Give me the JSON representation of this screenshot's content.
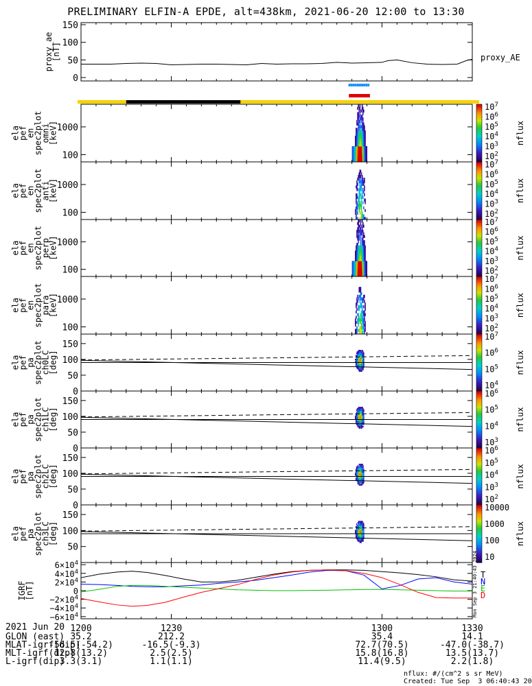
{
  "title": "PRELIMINARY ELFIN-A EPDE, alt=438km, 2021-06-20 12:00 to 13:30",
  "colors": {
    "yellow_bar": "#f5d200",
    "black_bar": "#000000",
    "blue_bar": "#1e90ff",
    "red_bar": "#e00000",
    "T": "#000000",
    "N": "#0000ff",
    "E": "#00c000",
    "D": "#ff0000"
  },
  "timebars": {
    "orbit": [
      {
        "from": 1200,
        "to": 1215,
        "color": "yellow"
      },
      {
        "from": 1215,
        "to": 1253,
        "color": "black"
      },
      {
        "from": 1253,
        "to": 1330,
        "color": "yellow"
      }
    ],
    "science_zone": {
      "from": 1289,
      "to": 1296,
      "color": "red"
    },
    "spin_marks": [
      1289.2,
      1289.9,
      1290.6,
      1291.3,
      1292,
      1292.7,
      1293.4,
      1294.1,
      1294.8,
      1295.5
    ]
  },
  "chart_data": [
    {
      "type": "line",
      "ylabel": "proxy_ae [nT]",
      "ylim": [
        0,
        150
      ],
      "yticks": [
        "0",
        "50",
        "100",
        "150"
      ],
      "series": [
        {
          "name": "proxy_AE",
          "x": [
            1200,
            1205,
            1210,
            1215,
            1220,
            1225,
            1230,
            1235,
            1240,
            1245,
            1250,
            1255,
            1260,
            1265,
            1270,
            1275,
            1280,
            1285,
            1290,
            1295,
            1300,
            1302,
            1305,
            1310,
            1315,
            1320,
            1325,
            1328,
            1330
          ],
          "values": [
            38,
            38,
            38,
            40,
            41,
            40,
            36,
            37,
            38,
            38,
            37,
            36,
            40,
            38,
            39,
            39,
            40,
            43,
            41,
            42,
            43,
            48,
            50,
            42,
            38,
            37,
            38,
            48,
            52
          ]
        }
      ]
    },
    {
      "type": "heatmap",
      "ylabel": "ela pef en spec2plot omni [keV]",
      "ylog": true,
      "ylim": [
        55,
        6500
      ],
      "yticks": [
        "100",
        "1000"
      ],
      "colorbar": {
        "label": "nflux",
        "ticks": [
          "10^2",
          "10^3",
          "10^4",
          "10^5",
          "10^6",
          "10^7"
        ]
      },
      "x_range": [
        1290,
        1296
      ]
    },
    {
      "type": "heatmap",
      "ylabel": "ela pef en spec2plot anti [keV]",
      "ylog": true,
      "ylim": [
        55,
        6500
      ],
      "yticks": [
        "100",
        "1000"
      ],
      "colorbar": {
        "label": "nflux",
        "ticks": [
          "10^2",
          "10^3",
          "10^4",
          "10^5",
          "10^6",
          "10^7"
        ]
      },
      "x_range": [
        1290,
        1296
      ]
    },
    {
      "type": "heatmap",
      "ylabel": "ela pef en spec2plot perp [keV]",
      "ylog": true,
      "ylim": [
        55,
        6500
      ],
      "yticks": [
        "100",
        "1000"
      ],
      "colorbar": {
        "label": "nflux",
        "ticks": [
          "10^2",
          "10^3",
          "10^4",
          "10^5",
          "10^6",
          "10^7"
        ]
      },
      "x_range": [
        1290,
        1296
      ]
    },
    {
      "type": "heatmap",
      "ylabel": "ela pef en spec2plot para [keV]",
      "ylog": true,
      "ylim": [
        55,
        6500
      ],
      "yticks": [
        "100",
        "1000"
      ],
      "colorbar": {
        "label": "nflux",
        "ticks": [
          "10^2",
          "10^3",
          "10^4",
          "10^5",
          "10^6",
          "10^7"
        ]
      },
      "x_range": [
        1290,
        1296
      ]
    },
    {
      "type": "heatmap",
      "ylabel": "ela pef pa spec2plot ch0LC [deg]",
      "ylim": [
        0,
        180
      ],
      "yticks": [
        "0",
        "50",
        "100",
        "150"
      ],
      "colorbar": {
        "label": "nflux",
        "ticks": [
          "10^4",
          "10^5",
          "10^6",
          "10^7"
        ]
      },
      "loss_cone_solid": {
        "x": [
          1200,
          1330
        ],
        "values": [
          97,
          68
        ]
      },
      "anti_loss_cone_dashed": {
        "x": [
          1200,
          1330
        ],
        "values": [
          98,
          112
        ]
      },
      "ninety_line": 90
    },
    {
      "type": "heatmap",
      "ylabel": "ela pef pa spec2plot ch1LC [deg]",
      "ylim": [
        0,
        180
      ],
      "yticks": [
        "0",
        "50",
        "100",
        "150"
      ],
      "colorbar": {
        "label": "nflux",
        "ticks": [
          "10^3",
          "10^4",
          "10^5",
          "10^6"
        ]
      },
      "loss_cone_solid": {
        "x": [
          1200,
          1330
        ],
        "values": [
          97,
          68
        ]
      },
      "anti_loss_cone_dashed": {
        "x": [
          1200,
          1330
        ],
        "values": [
          98,
          112
        ]
      },
      "ninety_line": 90
    },
    {
      "type": "heatmap",
      "ylabel": "ela pef pa spec2plot ch2LC [deg]",
      "ylim": [
        0,
        180
      ],
      "yticks": [
        "0",
        "50",
        "100",
        "150"
      ],
      "colorbar": {
        "label": "nflux",
        "ticks": [
          "10^2",
          "10^3",
          "10^4",
          "10^5",
          "10^6"
        ]
      },
      "loss_cone_solid": {
        "x": [
          1200,
          1330
        ],
        "values": [
          97,
          68
        ]
      },
      "anti_loss_cone_dashed": {
        "x": [
          1200,
          1330
        ],
        "values": [
          98,
          112
        ]
      },
      "ninety_line": 90
    },
    {
      "type": "heatmap",
      "ylabel": "ela pef pa spec2plot ch3LC [deg]",
      "ylim": [
        0,
        180
      ],
      "yticks": [
        "50",
        "100",
        "150"
      ],
      "colorbar": {
        "label": "nflux",
        "ticks": [
          "10",
          "100",
          "1000",
          "10000"
        ]
      },
      "loss_cone_solid": {
        "x": [
          1200,
          1330
        ],
        "values": [
          97,
          68
        ]
      },
      "anti_loss_cone_dashed": {
        "x": [
          1200,
          1330
        ],
        "values": [
          98,
          112
        ]
      },
      "ninety_line": 90
    },
    {
      "type": "line",
      "ylabel": "IGRF [nT]",
      "ylim": [
        -65000,
        65000
      ],
      "yticks": [
        "6×10^4",
        "4×10^4",
        "2×10^4",
        "0",
        "−2×10^4",
        "−4×10^4",
        "−6×10^4"
      ],
      "side_note": "Mon Sep  3 21:40:43 2024",
      "series": [
        {
          "name": "T",
          "x": [
            1200,
            1206,
            1212,
            1217,
            1222,
            1228,
            1234,
            1240,
            1246,
            1252,
            1258,
            1264,
            1270,
            1276,
            1282,
            1288,
            1294,
            1300,
            1306,
            1312,
            1318,
            1324,
            1330
          ],
          "values": [
            30000,
            38000,
            43000,
            45000,
            42000,
            35000,
            27000,
            20000,
            20000,
            24000,
            31000,
            38000,
            44000,
            47000,
            48000,
            48000,
            47000,
            44000,
            41000,
            37000,
            32000,
            25000,
            22000
          ]
        },
        {
          "name": "N",
          "x": [
            1200,
            1206,
            1212,
            1217,
            1222,
            1228,
            1234,
            1240,
            1246,
            1252,
            1258,
            1264,
            1270,
            1276,
            1282,
            1288,
            1294,
            1300,
            1306,
            1312,
            1318,
            1324,
            1330
          ],
          "values": [
            15000,
            14000,
            12000,
            10000,
            9000,
            9000,
            11000,
            13000,
            17000,
            20000,
            24000,
            30000,
            36000,
            43000,
            47000,
            46000,
            36000,
            4000,
            12000,
            27000,
            30000,
            20000,
            15000
          ]
        },
        {
          "name": "E",
          "x": [
            1200,
            1206,
            1212,
            1217,
            1222,
            1228,
            1234,
            1240,
            1246,
            1252,
            1258,
            1264,
            1270,
            1276,
            1282,
            1288,
            1294,
            1300,
            1306,
            1312,
            1318,
            1324,
            1330
          ],
          "values": [
            -3000,
            3000,
            10000,
            12000,
            12000,
            10000,
            8000,
            6000,
            4000,
            2000,
            1000,
            0,
            0,
            500,
            1000,
            2000,
            2500,
            3000,
            2000,
            1000,
            0,
            -1000,
            -1000
          ]
        },
        {
          "name": "D",
          "x": [
            1200,
            1206,
            1212,
            1217,
            1222,
            1228,
            1234,
            1240,
            1246,
            1252,
            1258,
            1264,
            1270,
            1276,
            1282,
            1288,
            1294,
            1300,
            1306,
            1312,
            1318,
            1324,
            1330
          ],
          "values": [
            -18000,
            -26000,
            -33000,
            -36000,
            -34000,
            -27000,
            -15000,
            -4000,
            5000,
            14000,
            26000,
            36000,
            43000,
            47000,
            48000,
            46000,
            40000,
            30000,
            14000,
            -4000,
            -16000,
            -17000,
            -17000
          ]
        }
      ]
    }
  ],
  "xaxis": {
    "date_label": "2021 Jun 20",
    "ticks": [
      "1200",
      "1230",
      "1300",
      "1330"
    ],
    "tick_values": [
      1200,
      1230,
      1300,
      1330
    ],
    "minor_step": 5
  },
  "footer": {
    "rows": [
      {
        "label": "GLON (east)",
        "values": [
          "35.2",
          "212.2",
          "35.4",
          "14.1"
        ]
      },
      {
        "label": "MLAT-igrf(dip)",
        "values": [
          "-56.5(-54.2)",
          "-16.5(-9.3)",
          "72.7(70.5)",
          "-47.0(-38.7)"
        ]
      },
      {
        "label": "MLT-igrf(dip)",
        "values": [
          "12.8(13.2)",
          "2.5(2.5)",
          "15.8(16.8)",
          "13.5(13.7)"
        ]
      },
      {
        "label": "L-igrf(dip)",
        "values": [
          "3.3(3.1)",
          "1.1(1.1)",
          "11.4(9.5)",
          "2.2(1.8)"
        ]
      }
    ],
    "units_note": "nflux: #/(cm^2 s sr MeV)",
    "created": "Created: Tue Sep  3 06:40:43 2024"
  }
}
